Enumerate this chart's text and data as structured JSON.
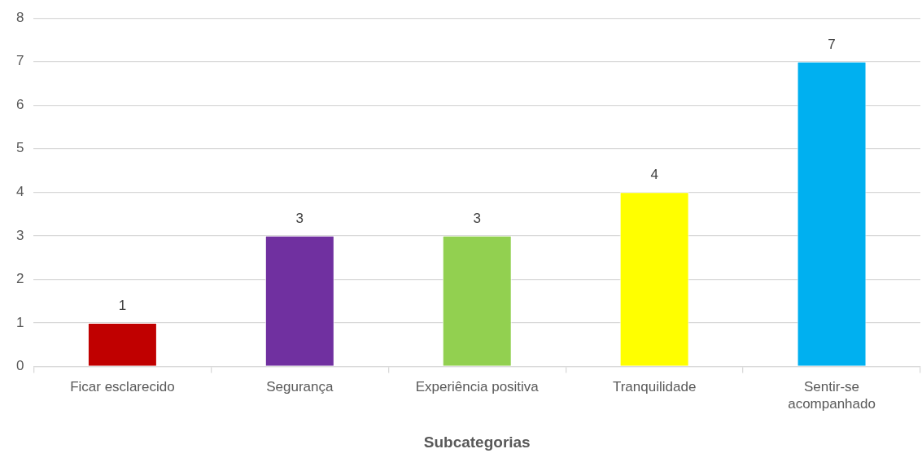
{
  "chart_data": {
    "type": "bar",
    "xlabel": "Subcategorias",
    "categories": [
      "Ficar esclarecido",
      "Segurança",
      "Experiência positiva",
      "Tranquilidade",
      "Sentir-se acompanhado"
    ],
    "values": [
      1,
      3,
      3,
      4,
      7
    ],
    "colors": [
      "#c00000",
      "#7030a0",
      "#92d050",
      "#ffff00",
      "#00b0f0"
    ],
    "ylim": [
      0,
      8
    ],
    "yticks": [
      0,
      1,
      2,
      3,
      4,
      5,
      6,
      7,
      8
    ],
    "grid": "y",
    "data_labels": true
  }
}
